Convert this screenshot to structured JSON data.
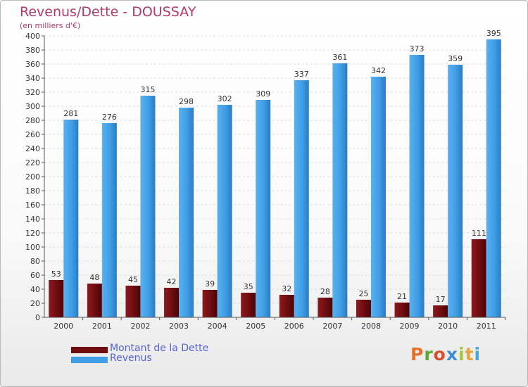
{
  "header": {
    "title": "Revenus/Dette - DOUSSAY",
    "subtitle": "(en milliers d'€)"
  },
  "chart_data": {
    "type": "bar",
    "categories": [
      "2000",
      "2001",
      "2002",
      "2003",
      "2004",
      "2005",
      "2006",
      "2007",
      "2008",
      "2009",
      "2010",
      "2011"
    ],
    "series": [
      {
        "name": "Montant de la Dette",
        "values": [
          53,
          48,
          45,
          42,
          39,
          35,
          32,
          28,
          25,
          21,
          17,
          111
        ],
        "color": "#6e0c10"
      },
      {
        "name": "Revenus",
        "values": [
          281,
          276,
          315,
          298,
          302,
          309,
          337,
          361,
          342,
          373,
          359,
          395
        ],
        "color": "#3f9ee6"
      }
    ],
    "ylim": [
      0,
      400
    ],
    "ytick_step": 20,
    "grid": true,
    "legend_position": "bottom-left"
  },
  "legend": [
    {
      "label": "Montant de la Dette",
      "color": "#6e0c10"
    },
    {
      "label": "Revenus",
      "color": "#3f9ee6"
    }
  ],
  "logo": {
    "letters": [
      "P",
      "r",
      "o",
      "x",
      "i",
      "t",
      "i"
    ],
    "colors": [
      "#e6702a",
      "#5aa832",
      "#d94f2e",
      "#3a8fd4",
      "#a4c639",
      "#e8a23a",
      "#4aa8d8"
    ]
  }
}
